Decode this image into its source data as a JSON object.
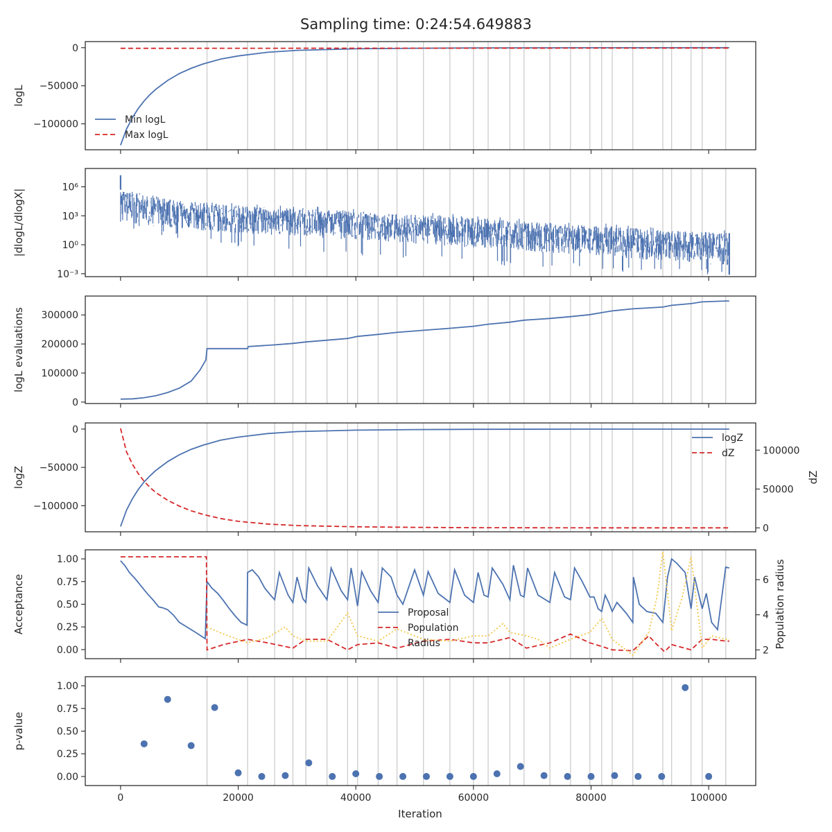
{
  "figure": {
    "title": "Sampling time: 0:24:54.649883",
    "shared_x": {
      "label": "Iteration",
      "range": [
        -6000,
        108000
      ],
      "ticks": [
        0,
        20000,
        40000,
        60000,
        80000,
        100000
      ],
      "tick_labels": [
        "0",
        "20000",
        "40000",
        "60000",
        "80000",
        "100000"
      ]
    },
    "restart_iterations": [
      14700,
      21600,
      26200,
      29300,
      31500,
      35100,
      38600,
      40300,
      43800,
      47000,
      51500,
      56000,
      60000,
      62500,
      66200,
      68600,
      73000,
      76500,
      79800,
      81800,
      83600,
      87100,
      92200,
      93700,
      97000,
      98900,
      102900
    ],
    "colors": {
      "blue": "#4c72b0",
      "red": "#d62728",
      "yellow": "#f5c542",
      "grid": "#cccccc",
      "axis": "#262626"
    }
  },
  "chart_data": [
    {
      "type": "line",
      "ylabel": "logL",
      "ylim": [
        -134000,
        8000
      ],
      "yticks": [
        0,
        -50000,
        -100000
      ],
      "ytick_labels": [
        "0",
        "−50000",
        "−100000"
      ],
      "legend_position": "lower-left",
      "series": [
        {
          "name": "Min logL",
          "color": "#4c72b0",
          "style": "solid",
          "x": [
            0,
            1000,
            2000,
            3000,
            4000,
            5000,
            6000,
            8000,
            10000,
            12000,
            14000,
            17000,
            20000,
            25000,
            30000,
            40000,
            50000,
            60000,
            80000,
            103500
          ],
          "y": [
            -128000,
            -107000,
            -92000,
            -80000,
            -70000,
            -61500,
            -54500,
            -43000,
            -34000,
            -27000,
            -21500,
            -15000,
            -10800,
            -6000,
            -3500,
            -1500,
            -700,
            -300,
            -100,
            -50
          ]
        },
        {
          "name": "Max logL",
          "color": "#d62728",
          "style": "dashed",
          "x": [
            0,
            103500
          ],
          "y": [
            -800,
            -500
          ]
        }
      ]
    },
    {
      "type": "line",
      "ylabel": "|dlogL/dlogX|",
      "yscale": "log",
      "ylim": [
        -3.3,
        7.9
      ],
      "yticks": [
        6,
        3,
        0,
        -3
      ],
      "ytick_labels": [
        "10⁶",
        "10³",
        "10⁰",
        "10⁻³"
      ],
      "band": {
        "name": "|dlogL/dlogX|",
        "color": "#4c72b0",
        "x": [
          0,
          10000,
          20000,
          30000,
          40000,
          50000,
          60000,
          70000,
          80000,
          90000,
          100000,
          103500
        ],
        "upper": [
          5.7,
          4.6,
          4.1,
          3.8,
          3.5,
          3.1,
          2.8,
          2.4,
          2.0,
          1.6,
          1.3,
          1.2
        ],
        "lower": [
          2.4,
          1.6,
          1.2,
          0.9,
          0.5,
          0.1,
          -0.3,
          -0.7,
          -1.1,
          -1.6,
          -2.0,
          -2.2
        ],
        "spikes_low": [
          1.8,
          0.2,
          -0.5,
          -1.2,
          -1.6,
          -2.2,
          -2.5,
          -3.0,
          -3.1
        ],
        "peak": 7.2
      }
    },
    {
      "type": "line",
      "ylabel": "logL evaluations",
      "ylim": [
        -5000,
        365000
      ],
      "yticks": [
        0,
        100000,
        200000,
        300000
      ],
      "ytick_labels": [
        "0",
        "100000",
        "200000",
        "300000"
      ],
      "series": [
        {
          "name": "logL evaluations",
          "color": "#4c72b0",
          "style": "solid",
          "x": [
            0,
            2000,
            4000,
            6000,
            8000,
            10000,
            12000,
            13500,
            14500,
            14700,
            21600,
            21700,
            26200,
            29300,
            31500,
            35100,
            38600,
            40300,
            43800,
            47000,
            51500,
            56000,
            60000,
            62500,
            66200,
            68600,
            73000,
            76500,
            79800,
            81800,
            83600,
            87100,
            92200,
            93700,
            97000,
            98900,
            102900,
            103500
          ],
          "y": [
            10000,
            11000,
            15000,
            22000,
            33000,
            48000,
            72000,
            110000,
            145000,
            184000,
            184000,
            191000,
            197000,
            202000,
            207000,
            213000,
            219000,
            226000,
            233000,
            240000,
            247000,
            254000,
            261000,
            268000,
            275000,
            282000,
            288000,
            294000,
            301000,
            308000,
            314000,
            321000,
            327000,
            333000,
            339000,
            345000,
            348000,
            348000
          ]
        }
      ]
    },
    {
      "type": "line",
      "ylabel": "logZ",
      "ylim": [
        -134000,
        8000
      ],
      "yticks": [
        0,
        -50000,
        -100000
      ],
      "ytick_labels": [
        "0",
        "−50000",
        "−100000"
      ],
      "y2label": "dZ",
      "y2lim": [
        -5000,
        135000
      ],
      "y2ticks": [
        0,
        50000,
        100000
      ],
      "y2tick_labels": [
        "0",
        "50000",
        "100000"
      ],
      "legend_position": "upper-right",
      "series": [
        {
          "name": "logZ",
          "color": "#4c72b0",
          "style": "solid",
          "axis": "left",
          "x": [
            0,
            1000,
            2000,
            3000,
            4000,
            5000,
            6000,
            8000,
            10000,
            12000,
            14000,
            17000,
            20000,
            25000,
            30000,
            40000,
            50000,
            60000,
            80000,
            103500
          ],
          "y": [
            -127000,
            -106000,
            -91000,
            -79000,
            -69000,
            -61000,
            -54000,
            -42500,
            -33500,
            -26500,
            -21000,
            -14500,
            -10500,
            -5800,
            -3300,
            -1400,
            -650,
            -300,
            -80,
            -20
          ]
        },
        {
          "name": "dZ",
          "color": "#d62728",
          "style": "dashed",
          "axis": "right",
          "x": [
            0,
            1000,
            2000,
            3000,
            4000,
            5000,
            6000,
            8000,
            10000,
            12000,
            14000,
            17000,
            20000,
            25000,
            30000,
            40000,
            50000,
            60000,
            80000,
            103500
          ],
          "y": [
            128000,
            98000,
            82000,
            70000,
            60000,
            52000,
            45500,
            35500,
            28000,
            22000,
            17500,
            12000,
            8500,
            5000,
            3000,
            1400,
            700,
            300,
            100,
            50
          ]
        }
      ]
    },
    {
      "type": "line",
      "ylabel": "Acceptance",
      "ylim": [
        -0.1,
        1.1
      ],
      "yticks": [
        0,
        0.25,
        0.5,
        0.75,
        1
      ],
      "ytick_labels": [
        "0.00",
        "0.25",
        "0.50",
        "0.75",
        "1.00"
      ],
      "y2label": "Population radius",
      "y2lim": [
        1.5,
        7.7
      ],
      "y2ticks": [
        2,
        4,
        6
      ],
      "y2tick_labels": [
        "2",
        "4",
        "6"
      ],
      "legend_position": "lower-center",
      "series": [
        {
          "name": "Proposal",
          "color": "#4c72b0",
          "style": "solid",
          "axis": "left",
          "x": [
            0,
            800,
            1500,
            2500,
            3500,
            4500,
            5500,
            6500,
            7200,
            8000,
            9000,
            10000,
            11000,
            12000,
            13000,
            14400,
            14700,
            15500,
            16500,
            17500,
            18500,
            19500,
            20500,
            21500,
            21600,
            22400,
            23500,
            24500,
            25500,
            26200,
            27000,
            28500,
            29300,
            30000,
            31000,
            31500,
            32000,
            33500,
            35100,
            35800,
            37500,
            38600,
            39200,
            40300,
            41000,
            42500,
            43800,
            44500,
            46000,
            47000,
            48000,
            50000,
            51500,
            52300,
            54000,
            56000,
            56800,
            58500,
            60000,
            60800,
            61800,
            62500,
            63200,
            65000,
            66200,
            66800,
            68000,
            68600,
            69200,
            71000,
            73000,
            73800,
            75500,
            76500,
            77200,
            78500,
            79800,
            80500,
            81200,
            81800,
            82400,
            83000,
            83600,
            84400,
            86000,
            87100,
            87200,
            88200,
            89500,
            91000,
            92200,
            93000,
            93700,
            94600,
            96000,
            97000,
            97600,
            98900,
            99600,
            100500,
            101500,
            102900,
            103500
          ],
          "y": [
            0.98,
            0.92,
            0.85,
            0.78,
            0.7,
            0.62,
            0.55,
            0.47,
            0.46,
            0.44,
            0.38,
            0.3,
            0.26,
            0.22,
            0.18,
            0.12,
            0.75,
            0.68,
            0.62,
            0.54,
            0.45,
            0.37,
            0.3,
            0.27,
            0.85,
            0.88,
            0.8,
            0.68,
            0.6,
            0.55,
            0.85,
            0.6,
            0.52,
            0.8,
            0.56,
            0.52,
            0.9,
            0.7,
            0.55,
            0.9,
            0.65,
            0.55,
            0.9,
            0.48,
            0.86,
            0.65,
            0.52,
            0.9,
            0.8,
            0.6,
            0.5,
            0.88,
            0.6,
            0.86,
            0.62,
            0.52,
            0.88,
            0.6,
            0.52,
            0.85,
            0.6,
            0.58,
            0.9,
            0.72,
            0.55,
            0.93,
            0.6,
            0.58,
            0.9,
            0.6,
            0.52,
            0.85,
            0.58,
            0.55,
            0.9,
            0.75,
            0.58,
            0.58,
            0.45,
            0.42,
            0.6,
            0.52,
            0.42,
            0.52,
            0.4,
            0.3,
            0.8,
            0.5,
            0.42,
            0.4,
            0.3,
            0.8,
            1.0,
            0.95,
            0.85,
            0.45,
            0.8,
            0.45,
            0.62,
            0.3,
            0.22,
            0.91,
            0.9
          ]
        },
        {
          "name": "Population",
          "color": "#d62728",
          "style": "dashed",
          "axis": "right",
          "x": [
            0,
            14600,
            14700,
            17500,
            21600,
            25000,
            29300,
            31500,
            35100,
            38600,
            40300,
            43800,
            47000,
            51500,
            56000,
            60000,
            62500,
            66200,
            69000,
            73000,
            76500,
            79800,
            81800,
            83600,
            87100,
            89800,
            91200,
            92500,
            93700,
            97000,
            98900,
            100500,
            102900,
            103500
          ],
          "y": [
            7.3,
            7.3,
            2.0,
            2.3,
            2.6,
            2.4,
            2.1,
            2.6,
            2.6,
            2.0,
            2.3,
            2.4,
            2.1,
            2.5,
            2.6,
            2.4,
            2.4,
            2.7,
            2.1,
            2.4,
            2.9,
            2.4,
            2.2,
            2.0,
            1.95,
            2.8,
            2.3,
            1.9,
            2.3,
            2.0,
            2.6,
            2.6,
            2.5,
            2.5
          ]
        },
        {
          "name": "Radius",
          "color": "#f5c542",
          "style": "dotted",
          "axis": "right",
          "x": [
            14700,
            17500,
            21600,
            25000,
            28000,
            29300,
            31500,
            35100,
            38600,
            40300,
            43800,
            47000,
            51500,
            56000,
            60000,
            62500,
            65000,
            66200,
            69000,
            71000,
            73000,
            76500,
            79800,
            81800,
            83600,
            87100,
            89800,
            91200,
            92200,
            93700,
            95500,
            97000,
            98900,
            100500,
            102900,
            103500
          ],
          "y": [
            3.3,
            2.9,
            2.4,
            2.7,
            3.3,
            2.8,
            2.5,
            2.5,
            4.1,
            2.8,
            2.5,
            3.2,
            2.6,
            2.5,
            2.8,
            2.8,
            3.5,
            3.0,
            2.8,
            2.6,
            2.1,
            2.6,
            3.0,
            3.8,
            2.6,
            1.7,
            3.0,
            5.0,
            7.6,
            3.1,
            5.0,
            7.3,
            2.1,
            2.8,
            2.6,
            2.6
          ]
        }
      ]
    },
    {
      "type": "scatter",
      "ylabel": "p-value",
      "ylim": [
        -0.1,
        1.1
      ],
      "yticks": [
        0,
        0.25,
        0.5,
        0.75,
        1
      ],
      "ytick_labels": [
        "0.00",
        "0.25",
        "0.50",
        "0.75",
        "1.00"
      ],
      "series": [
        {
          "name": "p-value",
          "color": "#4c72b0",
          "x": [
            4000,
            8000,
            12000,
            16000,
            20000,
            24000,
            28000,
            32000,
            36000,
            40000,
            44000,
            48000,
            52000,
            56000,
            60000,
            64000,
            68000,
            72000,
            76000,
            80000,
            84000,
            88000,
            92000,
            96000,
            100000
          ],
          "y": [
            0.36,
            0.85,
            0.34,
            0.76,
            0.04,
            0.0,
            0.01,
            0.15,
            0.0,
            0.03,
            0.0,
            0.0,
            0.0,
            0.0,
            0.0,
            0.03,
            0.11,
            0.01,
            0.0,
            0.0,
            0.01,
            0.0,
            0.0,
            0.98,
            0.0
          ]
        }
      ]
    }
  ]
}
